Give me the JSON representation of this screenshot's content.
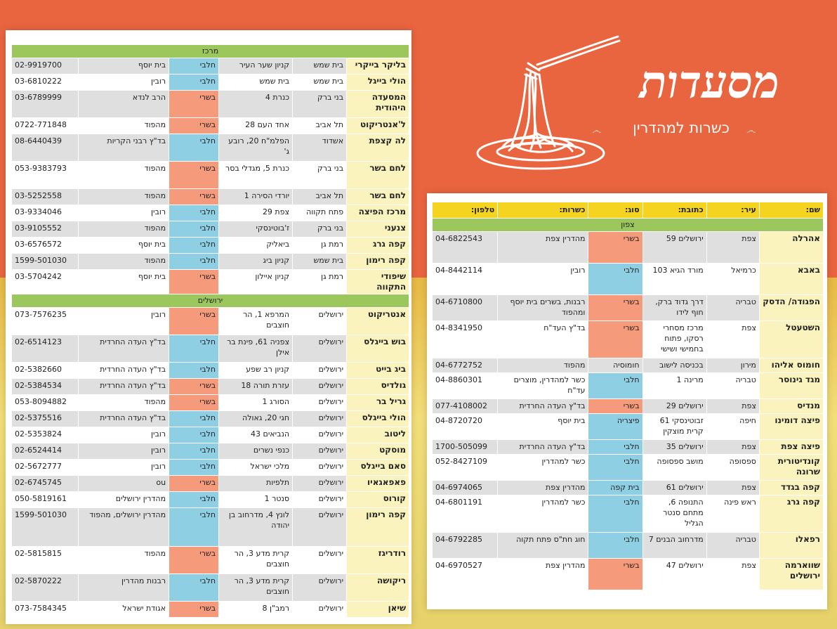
{
  "logo": {
    "title": "מסעדות",
    "subtitle": "כשרות למהדרין",
    "icon": "spaghetti-fork-icon"
  },
  "colors": {
    "background": "#e9653f",
    "section": "#9bc75d",
    "header": "#f5d321",
    "meat": "#f69a7c",
    "dairy": "#8fcfe3",
    "name": "#fbf3bd"
  },
  "left": {
    "sections": [
      {
        "title": "מרכז",
        "rows": [
          {
            "name": "בליקר בייקרי",
            "city": "בית שמש",
            "address": "קניון שער העיר",
            "type": "חלבי",
            "kashrut": "בית יוסף",
            "phone": "02-9919700",
            "tc": "blue",
            "shade": "gray",
            "h": 22
          },
          {
            "name": "הולי בייגל",
            "city": "בית שמש",
            "address": "בית שמש",
            "type": "חלבי",
            "kashrut": "רובין",
            "phone": "03-6810222",
            "tc": "blue",
            "shade": "white",
            "h": 22
          },
          {
            "name": "המסעדה היהודית",
            "city": "בני ברק",
            "address": "כנרת 4",
            "type": "בשרי",
            "kashrut": "הרב לנדא",
            "phone": "03-6789999",
            "tc": "salmon",
            "shade": "gray",
            "h": 38
          },
          {
            "name": "ל'אנטריקוט",
            "city": "תל אביב",
            "address": "אחד העם 28",
            "type": "בשרי",
            "kashrut": "מהפוד",
            "phone": "0722-771848",
            "tc": "salmon",
            "shade": "white",
            "h": 22
          },
          {
            "name": "לה קצפת",
            "city": "אשדוד",
            "address": "הפלמ\"ח 20, רובע ג'",
            "type": "חלבי",
            "kashrut": "בד\"ץ רבני הקריות",
            "phone": "08-6440439",
            "tc": "blue",
            "shade": "gray",
            "h": 38
          },
          {
            "name": "לחם בשר",
            "city": "בני ברק",
            "address": "כנרת 5, מגדלי בסר",
            "type": "בשרי",
            "kashrut": "מהפוד",
            "phone": "053-9383793",
            "tc": "salmon",
            "shade": "white",
            "h": 38
          },
          {
            "name": "לחם בשר",
            "city": "תל אביב",
            "address": "יורדי הסירה 1",
            "type": "בשרי",
            "kashrut": "מהפוד",
            "phone": "03-5252558",
            "tc": "salmon",
            "shade": "gray",
            "h": 22
          },
          {
            "name": "מרכז הפיצה",
            "city": "פתח תקווה",
            "address": "צפת 29",
            "type": "חלבי",
            "kashrut": "רובין",
            "phone": "03-9334046",
            "tc": "blue",
            "shade": "white",
            "h": 22
          },
          {
            "name": "צנעני",
            "city": "בני ברק",
            "address": "ז'בוטינסקי",
            "type": "חלבי",
            "kashrut": "מהפוד",
            "phone": "03-9105552",
            "tc": "blue",
            "shade": "gray",
            "h": 22
          },
          {
            "name": "קפה גרג",
            "city": "רמת גן",
            "address": "ביאליק",
            "type": "חלבי",
            "kashrut": "בית יוסף",
            "phone": "03-6576572",
            "tc": "blue",
            "shade": "white",
            "h": 22
          },
          {
            "name": "קפה רימון",
            "city": "בית שמש",
            "address": "קניון ביג",
            "type": "חלבי",
            "kashrut": "מהפוד",
            "phone": "1599-501030",
            "tc": "blue",
            "shade": "gray",
            "h": 22
          },
          {
            "name": "שיפודי התקווה",
            "city": "רמת גן",
            "address": "קניון איילון",
            "type": "בשרי",
            "kashrut": "בית יוסף",
            "phone": "03-5704242",
            "tc": "salmon",
            "shade": "white",
            "h": 22
          }
        ]
      },
      {
        "title": "ירושלים",
        "rows": [
          {
            "name": "אנטריקוט",
            "city": "ירושלים",
            "address": "המרפא 1, הר חוצבים",
            "type": "בשרי",
            "kashrut": "רובין",
            "phone": "073-7576235",
            "tc": "salmon",
            "shade": "white",
            "h": 38
          },
          {
            "name": "בוש בייגלס",
            "city": "ירושלים",
            "address": "צפניה 61, פינת בר אילן",
            "type": "חלבי",
            "kashrut": "בד\"ץ העדה החרדית",
            "phone": "02-6514123",
            "tc": "blue",
            "shade": "gray",
            "h": 38
          },
          {
            "name": "ביג בייט",
            "city": "ירושלים",
            "address": "קניון רב שפע",
            "type": "חלבי",
            "kashrut": "בד\"ץ העדה החרדית",
            "phone": "02-5382660",
            "tc": "blue",
            "shade": "white",
            "h": 22
          },
          {
            "name": "גולדיס",
            "city": "ירושלים",
            "address": "עזרת תורה 18",
            "type": "בשרי",
            "kashrut": "בד\"ץ העדה החרדית",
            "phone": "02-5384534",
            "tc": "salmon",
            "shade": "gray",
            "h": 22
          },
          {
            "name": "גריל בר",
            "city": "ירושלים",
            "address": "הסורג 1",
            "type": "בשרי",
            "kashrut": "מהפוד",
            "phone": "053-8094882",
            "tc": "salmon",
            "shade": "white",
            "h": 22
          },
          {
            "name": "הולי בייגלס",
            "city": "ירושלים",
            "address": "חגי 20, גאולה",
            "type": "חלבי",
            "kashrut": "בד\"ץ העדה החרדית",
            "phone": "02-5375516",
            "tc": "blue",
            "shade": "gray",
            "h": 22
          },
          {
            "name": "ליטוב",
            "city": "ירושלים",
            "address": "הנביאים 43",
            "type": "חלבי",
            "kashrut": "רובין",
            "phone": "02-5353824",
            "tc": "blue",
            "shade": "white",
            "h": 22
          },
          {
            "name": "מוסקט",
            "city": "ירושלים",
            "address": "כנפי נשרים",
            "type": "חלבי",
            "kashrut": "רובין",
            "phone": "02-6524414",
            "tc": "blue",
            "shade": "gray",
            "h": 22
          },
          {
            "name": "סאם בייגלס",
            "city": "ירושלים",
            "address": "מלכי ישראל",
            "type": "חלבי",
            "kashrut": "רובין",
            "phone": "02-5672777",
            "tc": "blue",
            "shade": "white",
            "h": 22
          },
          {
            "name": "פאפאגאיו",
            "city": "ירושלים",
            "address": "תלפיות",
            "type": "בשרי",
            "kashrut": "ou",
            "phone": "02-6745745",
            "tc": "salmon",
            "shade": "gray",
            "h": 22
          },
          {
            "name": "קורוס",
            "city": "ירושלים",
            "address": "סנטר 1",
            "type": "חלבי",
            "kashrut": "מהדרין ירושלים",
            "phone": "050-5819161",
            "tc": "blue",
            "shade": "white",
            "h": 22
          },
          {
            "name": "קפה רימון",
            "city": "ירושלים",
            "address": "לונץ 4, מדרחוב בן יהודה",
            "type": "חלבי",
            "kashrut": "מהדרין ירושלים, מהפוד",
            "phone": "1599-501030",
            "tc": "blue",
            "shade": "gray",
            "h": 54
          },
          {
            "name": "רודריגז",
            "city": "ירושלים",
            "address": "קרית מדע 3, הר חוצבים",
            "type": "בשרי",
            "kashrut": "מהפוד",
            "phone": "02-5815815",
            "tc": "salmon",
            "shade": "white",
            "h": 38
          },
          {
            "name": "ריקושה",
            "city": "ירושלים",
            "address": "קרית מדע 3, הר חוצבים",
            "type": "חלבי",
            "kashrut": "רבנות מהדרין",
            "phone": "02-5870222",
            "tc": "blue",
            "shade": "gray",
            "h": 38
          },
          {
            "name": "שיאן",
            "city": "ירושלים",
            "address": "רמב\"ן 8",
            "type": "בשרי",
            "kashrut": "אגודת ישראל",
            "phone": "073-7584345",
            "tc": "salmon",
            "shade": "white",
            "h": 22
          }
        ]
      }
    ]
  },
  "right": {
    "headers": {
      "name": "שם:",
      "city": "עיר:",
      "address": "כתובת:",
      "type": "סוג:",
      "kashrut": "כשרות:",
      "phone": "טלפון:"
    },
    "sections": [
      {
        "title": "צפון",
        "rows": [
          {
            "name": "אהרלה",
            "city": "צפת",
            "address": "ירושלים 59",
            "type": "בשרי",
            "kashrut": "מהדרין צפת",
            "phone": "04-6822543",
            "tc": "salmon",
            "shade": "gray",
            "h": 44
          },
          {
            "name": "באבא",
            "city": "כרמיאל",
            "address": "מורד הגיא 103",
            "type": "חלבי",
            "kashrut": "רובין",
            "phone": "04-8442114",
            "tc": "blue",
            "shade": "white",
            "h": 44
          },
          {
            "name": "הפגודה/ הדסק",
            "city": "טבריה",
            "address": "דרך גדוד ברק, חוף לידו",
            "type": "בשרי",
            "kashrut": "רבנות, בשרים בית יוסף ומהפוד",
            "phone": "04-6710800",
            "tc": "salmon",
            "shade": "gray",
            "h": 36
          },
          {
            "name": "השטעטל",
            "city": "צפת",
            "address": "מרכז מסחרי רסקו, פתוח בחמישי ושישי",
            "type": "בשרי",
            "kashrut": "בד\"ץ העד\"ח",
            "phone": "04-8341950",
            "tc": "salmon",
            "shade": "white",
            "h": 52
          },
          {
            "name": "חומוס אליהו",
            "city": "מירון",
            "address": "בכניסה לישוב",
            "type": "חומוסיה",
            "kashrut": "מהפוד",
            "phone": "04-6772752",
            "tc": "gray",
            "shade": "gray",
            "h": 20
          },
          {
            "name": "מגד גינוסר",
            "city": "טבריה",
            "address": "מרינה 1",
            "type": "חלבי",
            "kashrut": "כשר למהדרין, מוצרים עד\"ח",
            "phone": "04-8860301",
            "tc": "blue",
            "shade": "white",
            "h": 36
          },
          {
            "name": "מנדיס",
            "city": "צפת",
            "address": "ירושלים 29",
            "type": "בשרי",
            "kashrut": "בד\"ץ העדה החרדית",
            "phone": "077-4108002",
            "tc": "salmon",
            "shade": "gray",
            "h": 20
          },
          {
            "name": "פיצה דומינו",
            "city": "חיפה",
            "address": "זבוטינסקי 61 קרית מוצקין",
            "type": "פיצריה",
            "kashrut": "בית יוסף",
            "phone": "04-8720720",
            "tc": "blue",
            "shade": "white",
            "h": 36
          },
          {
            "name": "פיצה צפת",
            "city": "צפת",
            "address": "ירושלים 35",
            "type": "חלבי",
            "kashrut": "בד\"ץ העדה החרדית",
            "phone": "1700-505099",
            "tc": "blue",
            "shade": "gray",
            "h": 20
          },
          {
            "name": "קונדיטורית שרונה",
            "city": "ספסופה",
            "address": "מושב ספסופה",
            "type": "חלבי",
            "kashrut": "כשר למהדרין",
            "phone": "052-8427109",
            "tc": "blue",
            "shade": "white",
            "h": 36
          },
          {
            "name": "קפה בגדד",
            "city": "צפת",
            "address": "ירושלים 61",
            "type": "בית קפה",
            "kashrut": "מהדרין צפת",
            "phone": "04-6974065",
            "tc": "blue",
            "shade": "gray",
            "h": 20
          },
          {
            "name": "קפה גרג",
            "city": "ראש פינה",
            "address": "התנופה 6, מתחם סנטר הגליל",
            "type": "חלבי",
            "kashrut": "כשר למהדרין",
            "phone": "04-6801191",
            "tc": "blue",
            "shade": "white",
            "h": 52
          },
          {
            "name": "רפאלו",
            "city": "טבריה",
            "address": "מדרחוב הבנים 7",
            "type": "חלבי",
            "kashrut": "חוג חת\"ס פתח תקוה",
            "phone": "04-6792285",
            "tc": "blue",
            "shade": "gray",
            "h": 36
          },
          {
            "name": "שווארמה ירושלים",
            "city": "צפת",
            "address": "ירושלים 47",
            "type": "בשרי",
            "kashrut": "מהדרין צפת",
            "phone": "04-6970527",
            "tc": "salmon",
            "shade": "white",
            "h": 44
          }
        ]
      }
    ]
  }
}
